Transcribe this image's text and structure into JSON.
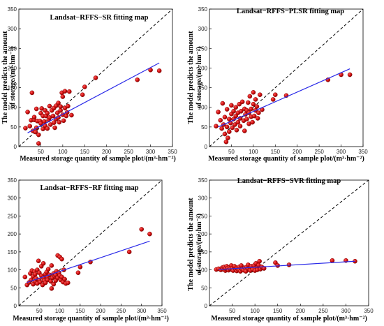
{
  "chart_data": [
    {
      "type": "scatter",
      "title": "Landsat−RFFS−SR fitting map",
      "xlabel": "Measured storage quantity of sample plot/(m³·hm⁻²)",
      "ylabel_line1": "The model predicts the amount",
      "ylabel_line2": "of storage/(m³·hm⁻²)",
      "xlim": [
        0,
        350
      ],
      "ylim": [
        0,
        350
      ],
      "xticks": [
        "50",
        "100",
        "150",
        "200",
        "250",
        "300",
        "350"
      ],
      "yticks": [
        "0",
        "50",
        "100",
        "150",
        "200",
        "250",
        "300",
        "350"
      ],
      "identity_line": true,
      "fit_line": {
        "x": [
          20,
          320
        ],
        "y": [
          35,
          213
        ]
      },
      "series": [
        {
          "x": [
            15,
            20,
            25,
            28,
            30,
            32,
            35,
            35,
            38,
            40,
            40,
            42,
            45,
            45,
            48,
            50,
            50,
            52,
            55,
            55,
            58,
            60,
            60,
            62,
            65,
            65,
            68,
            70,
            70,
            72,
            75,
            78,
            80,
            80,
            82,
            85,
            85,
            88,
            90,
            90,
            92,
            95,
            95,
            98,
            100,
            100,
            102,
            105,
            105,
            108,
            110,
            112,
            115,
            120,
            145,
            150,
            175,
            270,
            300,
            320
          ],
          "y": [
            47,
            88,
            52,
            67,
            137,
            40,
            68,
            75,
            37,
            96,
            48,
            65,
            8,
            30,
            65,
            59,
            85,
            97,
            45,
            78,
            64,
            92,
            53,
            78,
            85,
            46,
            68,
            103,
            74,
            56,
            92,
            78,
            98,
            61,
            48,
            104,
            70,
            86,
            111,
            74,
            62,
            92,
            102,
            137,
            81,
            127,
            66,
            141,
            98,
            78,
            87,
            103,
            140,
            80,
            132,
            152,
            175,
            170,
            195,
            193
          ]
        }
      ]
    },
    {
      "type": "scatter",
      "title": "Landsat−RFFS−PLSR fitting map",
      "xlabel": "Measured storage quantity of sample plot/(m³·hm⁻²)",
      "ylabel_line1": "The model predicts the amount",
      "ylabel_line2": "of storage/(m³·hm⁻²)",
      "xlim": [
        0,
        350
      ],
      "ylim": [
        0,
        350
      ],
      "xticks": [
        "50",
        "100",
        "150",
        "200",
        "250",
        "300",
        "350"
      ],
      "yticks": [
        "0",
        "50",
        "100",
        "150",
        "200",
        "250",
        "300",
        "350"
      ],
      "identity_line": true,
      "fit_line": {
        "x": [
          20,
          320
        ],
        "y": [
          50,
          198
        ]
      },
      "series": [
        {
          "x": [
            15,
            20,
            25,
            28,
            30,
            32,
            35,
            35,
            38,
            40,
            40,
            42,
            45,
            45,
            48,
            50,
            50,
            52,
            55,
            55,
            58,
            60,
            60,
            62,
            65,
            65,
            68,
            70,
            70,
            72,
            75,
            78,
            80,
            80,
            82,
            85,
            85,
            88,
            90,
            90,
            92,
            95,
            95,
            98,
            100,
            100,
            102,
            105,
            105,
            108,
            110,
            112,
            115,
            120,
            145,
            150,
            175,
            270,
            300,
            320
          ],
          "y": [
            52,
            88,
            67,
            46,
            110,
            56,
            75,
            32,
            12,
            95,
            50,
            22,
            70,
            38,
            60,
            83,
            105,
            48,
            70,
            90,
            56,
            78,
            100,
            42,
            86,
            62,
            108,
            72,
            52,
            90,
            114,
            66,
            96,
            40,
            82,
            70,
            92,
            112,
            58,
            86,
            128,
            76,
            96,
            62,
            108,
            138,
            78,
            92,
            120,
            102,
            72,
            86,
            132,
            94,
            120,
            132,
            130,
            170,
            183,
            183
          ]
        }
      ]
    },
    {
      "type": "scatter",
      "title": "Landsat−RFFS−RF fitting map",
      "xlabel": "Measured storage quantity of sample plot/(m³·hm⁻²)",
      "ylabel_line1": "",
      "ylabel_line2": "",
      "xlim": [
        0,
        350
      ],
      "ylim": [
        0,
        350
      ],
      "xticks": [
        "50",
        "100",
        "150",
        "200",
        "250",
        "300",
        "350"
      ],
      "yticks": [
        "0",
        "50",
        "100",
        "150",
        "200",
        "250",
        "300",
        "350"
      ],
      "identity_line": true,
      "fit_line": {
        "x": [
          20,
          320
        ],
        "y": [
          65,
          180
        ]
      },
      "series": [
        {
          "x": [
            15,
            20,
            25,
            28,
            30,
            32,
            35,
            35,
            38,
            40,
            40,
            42,
            45,
            45,
            48,
            50,
            50,
            52,
            55,
            55,
            58,
            60,
            60,
            62,
            65,
            65,
            68,
            70,
            70,
            72,
            75,
            78,
            80,
            80,
            82,
            85,
            85,
            88,
            90,
            90,
            92,
            95,
            95,
            98,
            100,
            100,
            102,
            105,
            105,
            108,
            110,
            112,
            115,
            120,
            145,
            150,
            175,
            270,
            300,
            320
          ],
          "y": [
            80,
            58,
            65,
            90,
            72,
            98,
            60,
            82,
            95,
            68,
            88,
            76,
            100,
            62,
            125,
            72,
            92,
            66,
            84,
            110,
            58,
            78,
            118,
            70,
            88,
            64,
            94,
            80,
            72,
            102,
            86,
            68,
            112,
            48,
            78,
            90,
            60,
            82,
            86,
            70,
            96,
            140,
            78,
            92,
            136,
            84,
            72,
            80,
            130,
            66,
            100,
            74,
            62,
            64,
            92,
            108,
            122,
            150,
            213,
            200
          ]
        }
      ]
    },
    {
      "type": "scatter",
      "title": "Landsat−RFFS−SVR fitting map",
      "xlabel": "Measured storage quantity of sample plot/(m³·hm⁻²)",
      "ylabel_line1": "The model predicts the amount",
      "ylabel_line2": "of storage/(m³·hm⁻²)",
      "xlim": [
        0,
        350
      ],
      "ylim": [
        0,
        350
      ],
      "xticks": [
        "50",
        "100",
        "150",
        "200",
        "250",
        "300",
        "350"
      ],
      "yticks": [
        "0",
        "50",
        "100",
        "150",
        "200",
        "250",
        "300",
        "350"
      ],
      "identity_line": true,
      "fit_line": {
        "x": [
          20,
          320
        ],
        "y": [
          101,
          124
        ]
      },
      "series": [
        {
          "x": [
            15,
            20,
            25,
            28,
            30,
            32,
            35,
            35,
            38,
            40,
            40,
            42,
            45,
            45,
            48,
            50,
            50,
            52,
            55,
            55,
            58,
            60,
            60,
            62,
            65,
            65,
            68,
            70,
            70,
            72,
            75,
            78,
            80,
            80,
            82,
            85,
            85,
            88,
            90,
            90,
            92,
            95,
            95,
            98,
            100,
            100,
            102,
            105,
            105,
            108,
            110,
            112,
            115,
            120,
            145,
            150,
            175,
            270,
            300,
            320
          ],
          "y": [
            101,
            103,
            100,
            106,
            102,
            108,
            98,
            104,
            110,
            101,
            105,
            99,
            107,
            103,
            112,
            100,
            104,
            98,
            106,
            110,
            101,
            97,
            105,
            103,
            108,
            100,
            96,
            104,
            112,
            102,
            99,
            106,
            101,
            96,
            108,
            103,
            114,
            100,
            106,
            98,
            110,
            104,
            101,
            112,
            103,
            98,
            118,
            106,
            100,
            113,
            124,
            102,
            108,
            104,
            120,
            112,
            114,
            126,
            126,
            124
          ]
        }
      ]
    }
  ]
}
